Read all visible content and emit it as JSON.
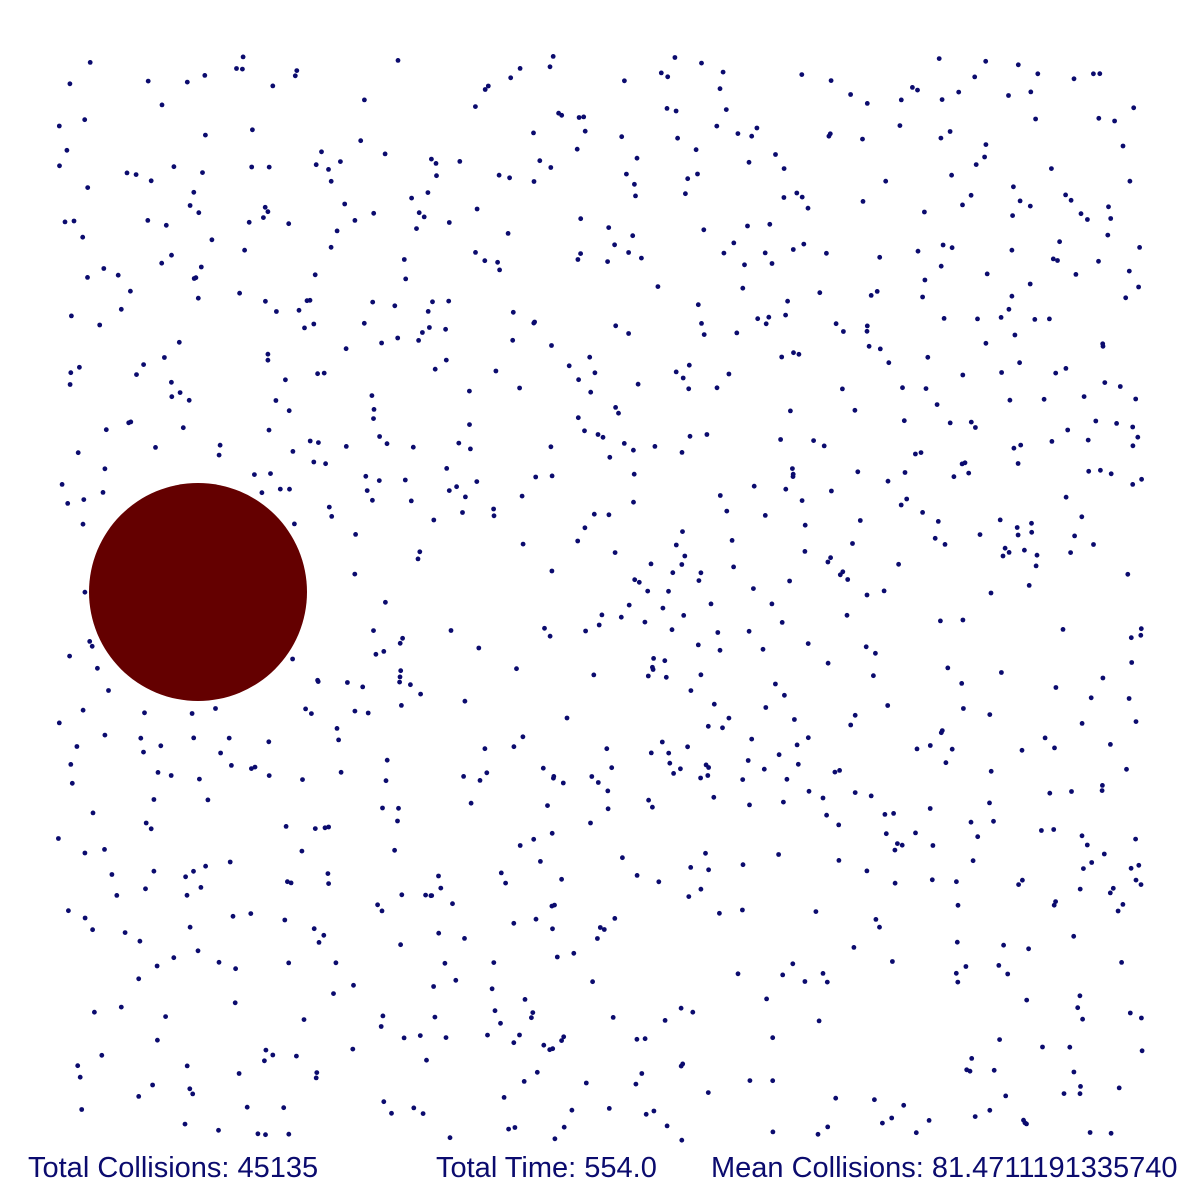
{
  "colors": {
    "background": "#ffffff",
    "particle": "#0b0b6e",
    "heavy_particle": "#640000",
    "stats_text": "#0b0b6e"
  },
  "stats": {
    "total_collisions": "Total Collisions: 45135",
    "total_time": "Total Time: 554.0",
    "mean_collisions": "Mean Collisions: 81.4711191335740"
  }
}
